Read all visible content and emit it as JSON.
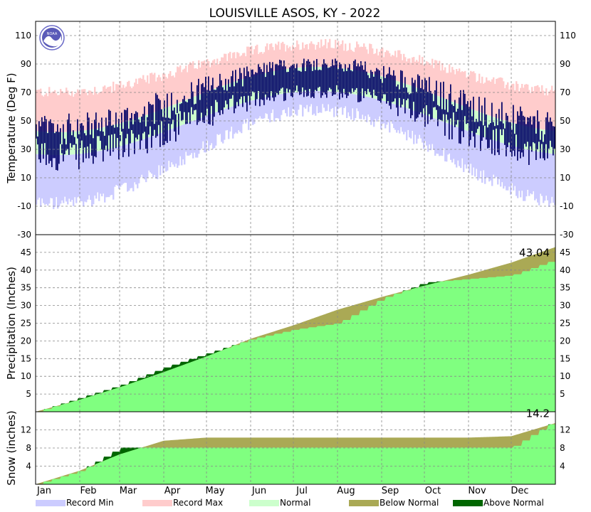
{
  "chart_data": {
    "title": "LOUISVILLE   ASOS, KY - 2022",
    "months": [
      "Jan",
      "Feb",
      "Mar",
      "Apr",
      "May",
      "Jun",
      "Jul",
      "Aug",
      "Sep",
      "Oct",
      "Nov",
      "Dec"
    ],
    "panels": [
      {
        "type": "temperature",
        "ylabel": "Temperature (Deg F)",
        "ylim": [
          -30,
          120
        ],
        "yticks": [
          -30,
          -10,
          10,
          30,
          50,
          70,
          90,
          110
        ],
        "normal_high": {
          "jan": 42,
          "jul": 88
        },
        "normal_low": {
          "jan": 26,
          "jul": 71
        },
        "record_max": {
          "jan": 70,
          "jul": 104
        },
        "record_min": {
          "jan": -8,
          "jul": 58
        }
      },
      {
        "type": "area",
        "ylabel": "Precipitation (Inches)",
        "ylim": [
          0,
          50
        ],
        "yticks": [
          5,
          10,
          15,
          20,
          25,
          30,
          35,
          40,
          45
        ],
        "annotation": "43.04",
        "normal_monthly_end": [
          3.4,
          6.9,
          11.2,
          15.6,
          20.6,
          24.4,
          28.8,
          32.4,
          35.6,
          38.7,
          42.1,
          46.5
        ],
        "actual_monthly_end": [
          4.0,
          7.5,
          12.5,
          16.5,
          20.5,
          23.2,
          25.0,
          32.0,
          36.5,
          37.5,
          38.5,
          43.04
        ]
      },
      {
        "type": "area",
        "ylabel": "Snow (inches)",
        "ylim": [
          0,
          16
        ],
        "yticks": [
          4,
          8,
          12
        ],
        "annotation": "14.2",
        "normal_monthly_end": [
          3.0,
          6.6,
          9.6,
          10.3,
          10.3,
          10.3,
          10.3,
          10.3,
          10.3,
          10.3,
          10.6,
          13.5
        ],
        "actual_monthly_end": [
          3.0,
          8.1,
          8.1,
          8.1,
          8.1,
          8.1,
          8.1,
          8.1,
          8.1,
          8.1,
          8.1,
          14.2
        ]
      }
    ],
    "legend": [
      {
        "label": "Record Min",
        "color": "#ccccff"
      },
      {
        "label": "Record Max",
        "color": "#ffcccc"
      },
      {
        "label": "Normal",
        "color": "#ccffcc"
      },
      {
        "label": "Below Normal",
        "color": "#aaa955"
      },
      {
        "label": "Above Normal",
        "color": "#006600"
      }
    ],
    "colors": {
      "observed": "#000066",
      "precip_fill": "#80ff80",
      "grid": "#888888"
    },
    "logo": "NOAA"
  }
}
